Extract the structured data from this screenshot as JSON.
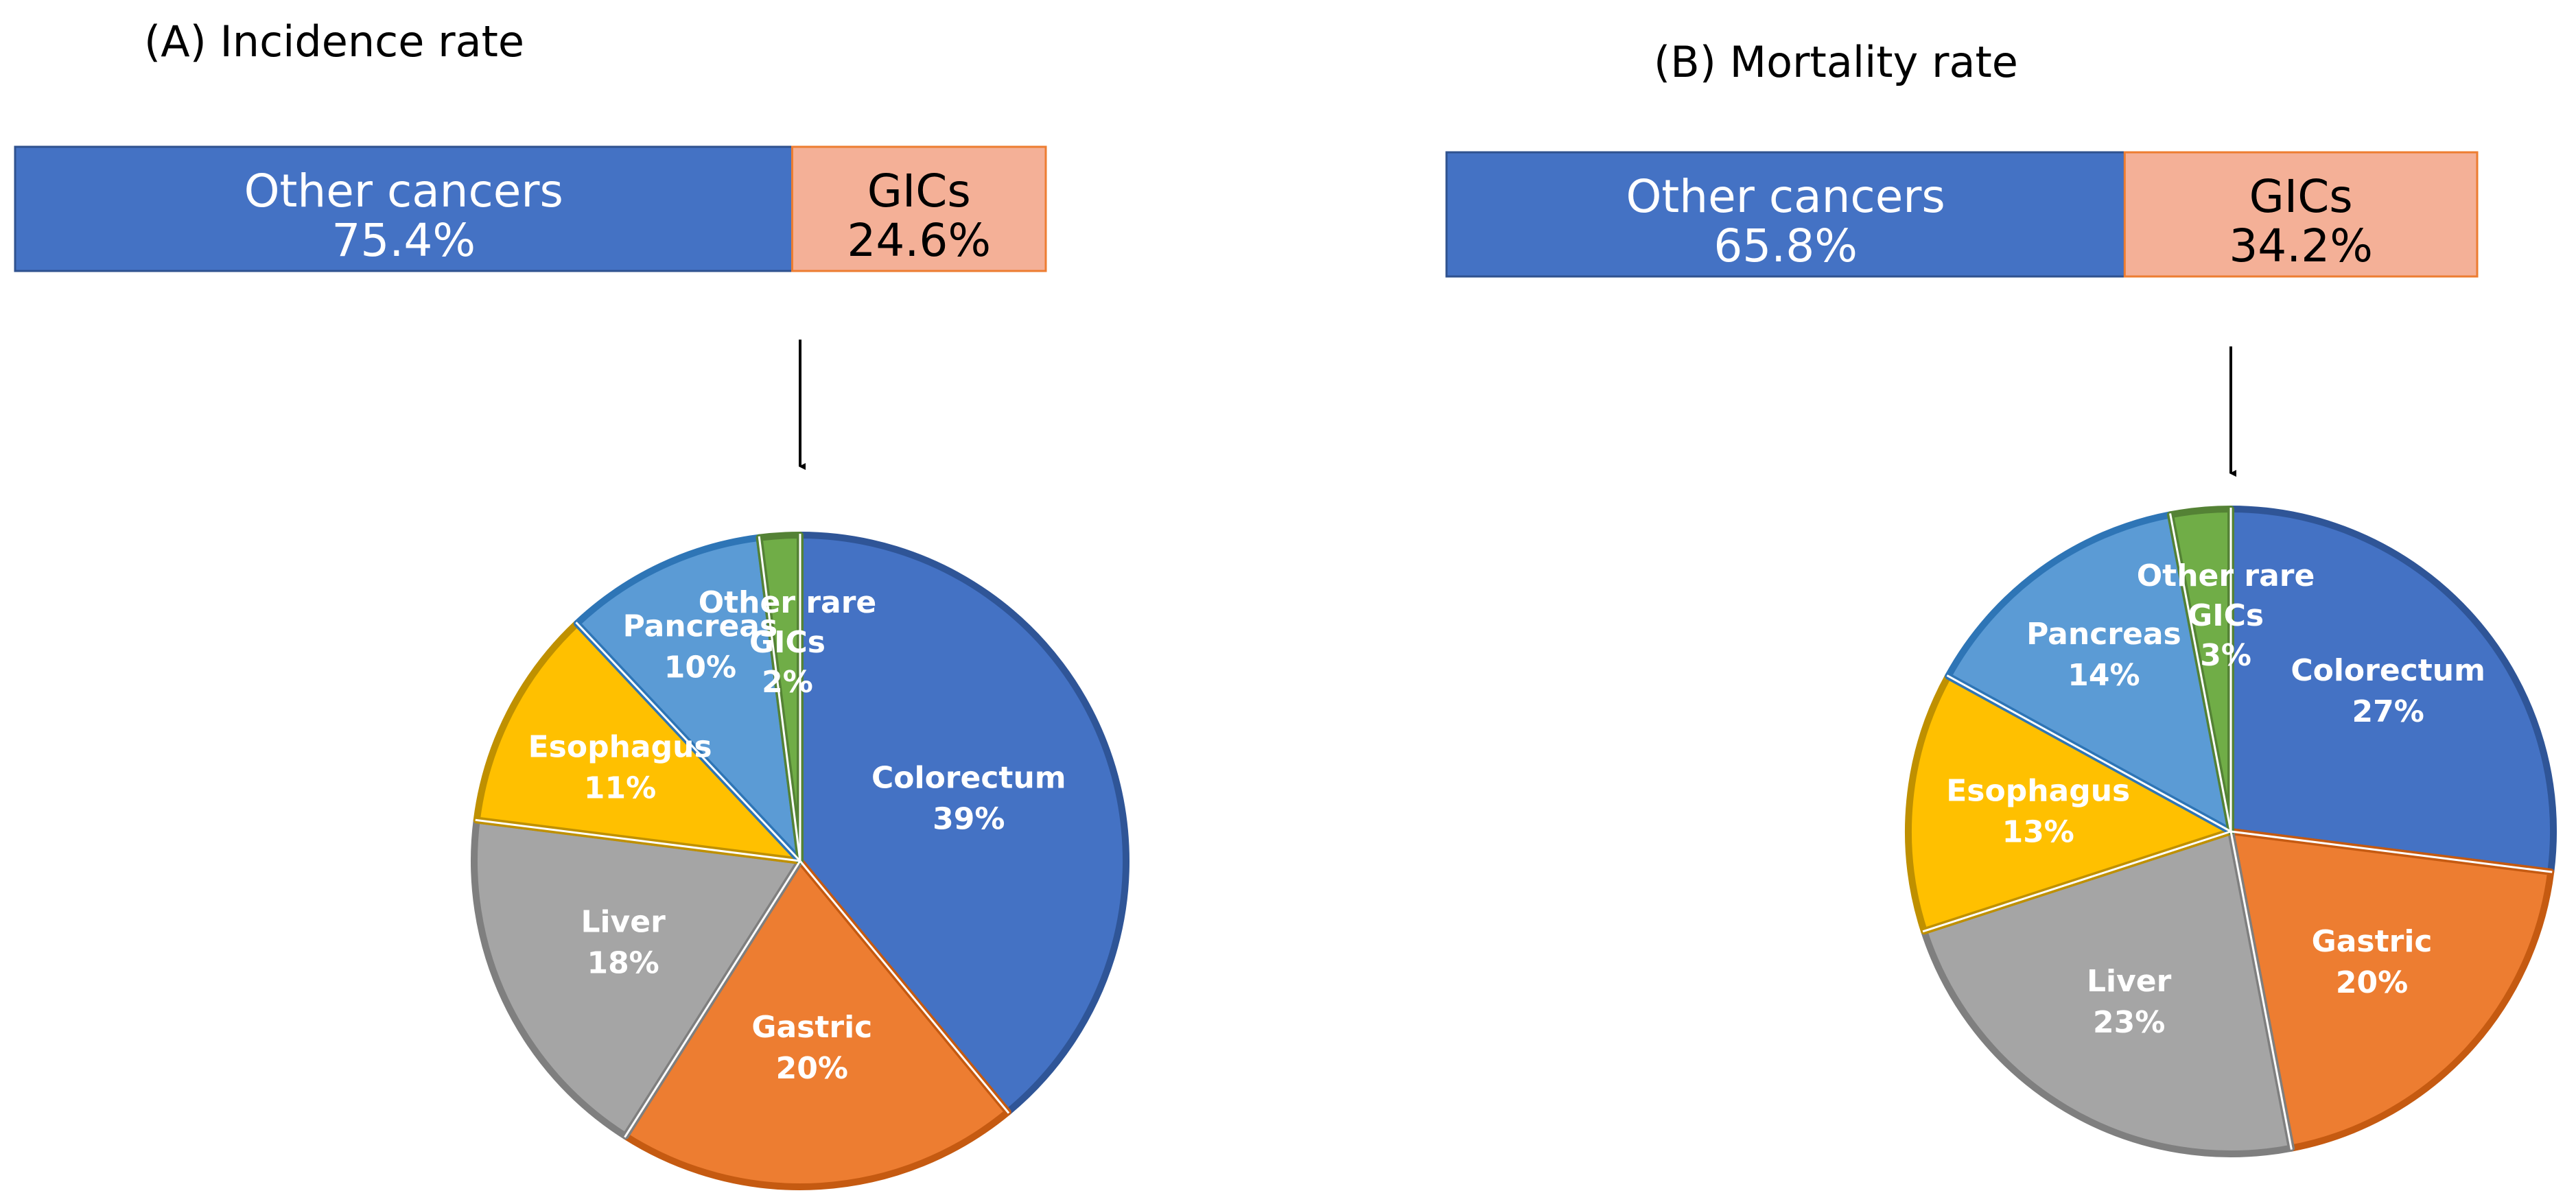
{
  "colors": {
    "other_bar": "#4472C4",
    "gic_bar": "#F4B097",
    "Colorectum": "#4472C4",
    "Gastric": "#ED7D31",
    "Liver": "#A5A5A5",
    "Esophagus": "#FFC000",
    "Pancreas": "#5B9BD5",
    "Other rare GICs": "#70AD47"
  },
  "chart_data": [
    {
      "type": "bar",
      "title": "(A) Incidence rate",
      "stacked": true,
      "orientation": "horizontal",
      "series": [
        {
          "name": "Other cancers",
          "value": 75.4,
          "value_label": "75.4%"
        },
        {
          "name": "GICs",
          "value": 24.6,
          "value_label": "24.6%"
        }
      ]
    },
    {
      "type": "pie",
      "slices": [
        {
          "label": "Colorectum",
          "value": 39,
          "value_label": "39%"
        },
        {
          "label": "Gastric",
          "value": 20,
          "value_label": "20%"
        },
        {
          "label": "Liver",
          "value": 18,
          "value_label": "18%"
        },
        {
          "label": "Esophagus",
          "value": 11,
          "value_label": "11%"
        },
        {
          "label": "Pancreas",
          "value": 10,
          "value_label": "10%"
        },
        {
          "label": "Other rare GICs",
          "value": 2,
          "value_label": "2%"
        }
      ]
    },
    {
      "type": "bar",
      "title": "(B) Mortality rate",
      "stacked": true,
      "orientation": "horizontal",
      "series": [
        {
          "name": "Other cancers",
          "value": 65.8,
          "value_label": "65.8%"
        },
        {
          "name": "GICs",
          "value": 34.2,
          "value_label": "34.2%"
        }
      ]
    },
    {
      "type": "pie",
      "slices": [
        {
          "label": "Colorectum",
          "value": 27,
          "value_label": "27%"
        },
        {
          "label": "Gastric",
          "value": 20,
          "value_label": "20%"
        },
        {
          "label": "Liver",
          "value": 23,
          "value_label": "23%"
        },
        {
          "label": "Esophagus",
          "value": 13,
          "value_label": "13%"
        },
        {
          "label": "Pancreas",
          "value": 14,
          "value_label": "14%"
        },
        {
          "label": "Other rare GICs",
          "value": 3,
          "value_label": "3%"
        }
      ]
    }
  ]
}
